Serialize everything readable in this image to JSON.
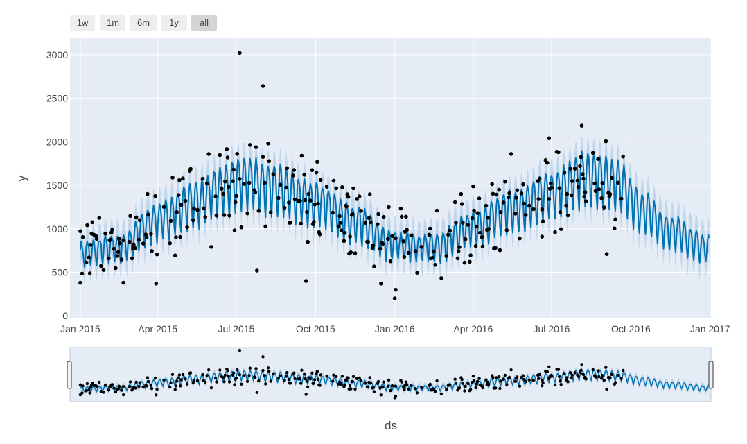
{
  "range_selector": {
    "buttons": [
      {
        "label": "1w"
      },
      {
        "label": "1m"
      },
      {
        "label": "6m"
      },
      {
        "label": "1y"
      },
      {
        "label": "all",
        "active": true
      }
    ]
  },
  "colors": {
    "plot_bg": "#e5ecf6",
    "grid": "#ffffff",
    "forecast_line": "#0072b2",
    "uncertainty_band": "#b3cfe8",
    "points": "#000000"
  },
  "chart_data": {
    "type": "line",
    "xlabel": "ds",
    "ylabel": "y",
    "x_range": [
      "2014-12-20",
      "2017-01-02"
    ],
    "ylim": [
      -30,
      3190
    ],
    "y_ticks": [
      0,
      500,
      1000,
      1500,
      2000,
      2500,
      3000
    ],
    "x_ticks": [
      {
        "date": "2015-01-01",
        "label": "Jan 2015"
      },
      {
        "date": "2015-04-01",
        "label": "Apr 2015"
      },
      {
        "date": "2015-07-01",
        "label": "Jul 2015"
      },
      {
        "date": "2015-10-01",
        "label": "Oct 2015"
      },
      {
        "date": "2016-01-01",
        "label": "Jan 2016"
      },
      {
        "date": "2016-04-01",
        "label": "Apr 2016"
      },
      {
        "date": "2016-07-01",
        "label": "Jul 2016"
      },
      {
        "date": "2016-10-01",
        "label": "Oct 2016"
      },
      {
        "date": "2017-01-01",
        "label": "Jan 2017"
      }
    ],
    "grid": true,
    "range_slider": true,
    "forecast_end": "2016-12-31",
    "actuals_end": "2016-09-22",
    "trend": [
      {
        "date": "2015-01-01",
        "y": 700
      },
      {
        "date": "2015-02-15",
        "y": 780
      },
      {
        "date": "2015-04-01",
        "y": 1080
      },
      {
        "date": "2015-05-15",
        "y": 1280
      },
      {
        "date": "2015-06-15",
        "y": 1430
      },
      {
        "date": "2015-07-10",
        "y": 1530
      },
      {
        "date": "2015-08-15",
        "y": 1450
      },
      {
        "date": "2015-10-01",
        "y": 1270
      },
      {
        "date": "2015-11-15",
        "y": 1060
      },
      {
        "date": "2016-01-01",
        "y": 800
      },
      {
        "date": "2016-02-15",
        "y": 780
      },
      {
        "date": "2016-04-01",
        "y": 990
      },
      {
        "date": "2016-05-15",
        "y": 1200
      },
      {
        "date": "2016-07-01",
        "y": 1380
      },
      {
        "date": "2016-08-10",
        "y": 1580
      },
      {
        "date": "2016-09-15",
        "y": 1500
      },
      {
        "date": "2016-10-15",
        "y": 1180
      },
      {
        "date": "2016-11-15",
        "y": 960
      },
      {
        "date": "2016-12-31",
        "y": 760
      }
    ],
    "weekly_amplitude": 230,
    "uncertainty_halfwidth": 200,
    "outliers": [
      {
        "date": "2015-07-05",
        "y": 3020
      },
      {
        "date": "2015-08-01",
        "y": 2640
      },
      {
        "date": "2016-06-28",
        "y": 2040
      },
      {
        "date": "2015-09-15",
        "y": 1840
      },
      {
        "date": "2016-05-15",
        "y": 1860
      },
      {
        "date": "2015-12-16",
        "y": 370
      },
      {
        "date": "2016-01-01",
        "y": 200
      },
      {
        "date": "2016-01-02",
        "y": 300
      },
      {
        "date": "2015-03-30",
        "y": 370
      },
      {
        "date": "2015-02-20",
        "y": 380
      },
      {
        "date": "2015-09-20",
        "y": 400
      },
      {
        "date": "2015-07-25",
        "y": 520
      },
      {
        "date": "2016-09-03",
        "y": 710
      },
      {
        "date": "2016-06-20",
        "y": 910
      },
      {
        "date": "2015-01-01",
        "y": 380
      }
    ]
  }
}
